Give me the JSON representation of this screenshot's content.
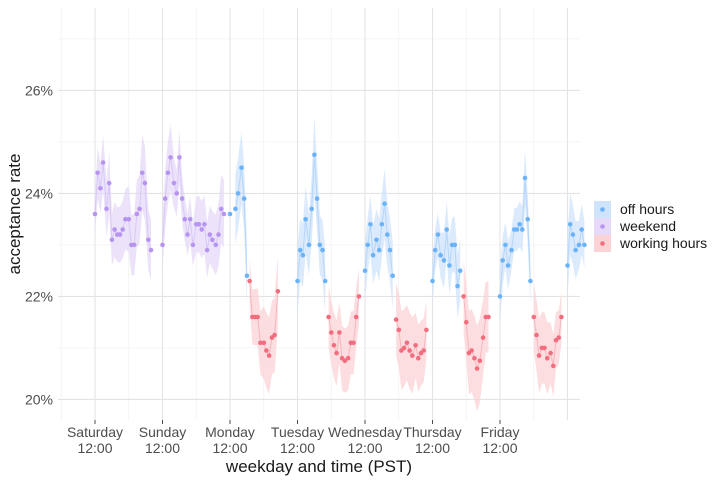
{
  "chart_data": {
    "type": "scatter",
    "xlabel": "weekday and time (PST)",
    "ylabel": "acceptance rate",
    "ylim": [
      19.6,
      27.6
    ],
    "y_ticks": [
      {
        "value": 20,
        "label": "20%"
      },
      {
        "value": 22,
        "label": "22%"
      },
      {
        "value": 24,
        "label": "24%"
      },
      {
        "value": 26,
        "label": "26%"
      }
    ],
    "x_ticks": [
      {
        "day": "Saturday",
        "time": "12:00"
      },
      {
        "day": "Sunday",
        "time": "12:00"
      },
      {
        "day": "Monday",
        "time": "12:00"
      },
      {
        "day": "Tuesday",
        "time": "12:00"
      },
      {
        "day": "Wednesday",
        "time": "12:00"
      },
      {
        "day": "Thursday",
        "time": "12:00"
      },
      {
        "day": "Friday",
        "time": "12:00"
      }
    ],
    "grid": true,
    "legend_placement": "right",
    "series": [
      {
        "name": "off hours",
        "color": "#6bb3f8",
        "band_color": "#cfe3fb",
        "points": [
          {
            "x": 2.0,
            "y": 23.6
          },
          {
            "x": 2.08,
            "y": 23.7
          },
          {
            "x": 2.12,
            "y": 24.0
          },
          {
            "x": 2.17,
            "y": 24.5
          },
          {
            "x": 2.21,
            "y": 23.9
          },
          {
            "x": 2.25,
            "y": 22.4
          },
          {
            "x": 3.0,
            "y": 22.3
          },
          {
            "x": 3.04,
            "y": 22.9
          },
          {
            "x": 3.08,
            "y": 22.8
          },
          {
            "x": 3.12,
            "y": 23.5
          },
          {
            "x": 3.17,
            "y": 23.0
          },
          {
            "x": 3.21,
            "y": 23.7
          },
          {
            "x": 3.25,
            "y": 24.75
          },
          {
            "x": 3.29,
            "y": 23.9
          },
          {
            "x": 3.33,
            "y": 23.0
          },
          {
            "x": 3.37,
            "y": 22.9
          },
          {
            "x": 3.41,
            "y": 22.3
          },
          {
            "x": 4.0,
            "y": 22.5
          },
          {
            "x": 4.04,
            "y": 23.0
          },
          {
            "x": 4.08,
            "y": 23.4
          },
          {
            "x": 4.12,
            "y": 22.8
          },
          {
            "x": 4.17,
            "y": 23.1
          },
          {
            "x": 4.21,
            "y": 22.9
          },
          {
            "x": 4.25,
            "y": 23.4
          },
          {
            "x": 4.29,
            "y": 23.8
          },
          {
            "x": 4.33,
            "y": 23.2
          },
          {
            "x": 4.37,
            "y": 22.9
          },
          {
            "x": 4.41,
            "y": 22.4
          },
          {
            "x": 5.0,
            "y": 22.3
          },
          {
            "x": 5.04,
            "y": 22.9
          },
          {
            "x": 5.08,
            "y": 23.2
          },
          {
            "x": 5.12,
            "y": 22.8
          },
          {
            "x": 5.17,
            "y": 22.7
          },
          {
            "x": 5.21,
            "y": 23.3
          },
          {
            "x": 5.25,
            "y": 22.6
          },
          {
            "x": 5.29,
            "y": 23.0
          },
          {
            "x": 5.33,
            "y": 23.0
          },
          {
            "x": 5.37,
            "y": 22.2
          },
          {
            "x": 5.41,
            "y": 22.5
          },
          {
            "x": 6.0,
            "y": 22.0
          },
          {
            "x": 6.04,
            "y": 22.7
          },
          {
            "x": 6.08,
            "y": 23.0
          },
          {
            "x": 6.12,
            "y": 22.6
          },
          {
            "x": 6.17,
            "y": 22.9
          },
          {
            "x": 6.21,
            "y": 23.3
          },
          {
            "x": 6.25,
            "y": 23.3
          },
          {
            "x": 6.29,
            "y": 23.4
          },
          {
            "x": 6.33,
            "y": 23.3
          },
          {
            "x": 6.37,
            "y": 24.3
          },
          {
            "x": 6.41,
            "y": 23.5
          },
          {
            "x": 6.45,
            "y": 22.3
          },
          {
            "x": 7.0,
            "y": 22.6
          },
          {
            "x": 7.04,
            "y": 23.4
          },
          {
            "x": 7.08,
            "y": 23.2
          },
          {
            "x": 7.12,
            "y": 22.9
          },
          {
            "x": 7.17,
            "y": 23.0
          },
          {
            "x": 7.21,
            "y": 23.3
          },
          {
            "x": 7.25,
            "y": 23.0
          }
        ]
      },
      {
        "name": "weekend",
        "color": "#b694f0",
        "band_color": "#e6daf8",
        "points": [
          {
            "x": 0.0,
            "y": 23.6
          },
          {
            "x": 0.04,
            "y": 24.4
          },
          {
            "x": 0.08,
            "y": 24.1
          },
          {
            "x": 0.12,
            "y": 24.6
          },
          {
            "x": 0.17,
            "y": 23.7
          },
          {
            "x": 0.21,
            "y": 24.2
          },
          {
            "x": 0.25,
            "y": 23.1
          },
          {
            "x": 0.29,
            "y": 23.3
          },
          {
            "x": 0.33,
            "y": 23.2
          },
          {
            "x": 0.37,
            "y": 23.2
          },
          {
            "x": 0.41,
            "y": 23.3
          },
          {
            "x": 0.45,
            "y": 23.5
          },
          {
            "x": 0.5,
            "y": 23.5
          },
          {
            "x": 0.54,
            "y": 23.0
          },
          {
            "x": 0.58,
            "y": 23.0
          },
          {
            "x": 0.62,
            "y": 23.6
          },
          {
            "x": 0.66,
            "y": 23.7
          },
          {
            "x": 0.7,
            "y": 24.4
          },
          {
            "x": 0.74,
            "y": 24.2
          },
          {
            "x": 0.79,
            "y": 23.1
          },
          {
            "x": 0.83,
            "y": 22.9
          },
          {
            "x": 1.0,
            "y": 23.0
          },
          {
            "x": 1.04,
            "y": 23.9
          },
          {
            "x": 1.08,
            "y": 24.4
          },
          {
            "x": 1.12,
            "y": 24.7
          },
          {
            "x": 1.17,
            "y": 24.2
          },
          {
            "x": 1.21,
            "y": 24.0
          },
          {
            "x": 1.25,
            "y": 24.7
          },
          {
            "x": 1.29,
            "y": 23.9
          },
          {
            "x": 1.33,
            "y": 23.5
          },
          {
            "x": 1.37,
            "y": 23.2
          },
          {
            "x": 1.41,
            "y": 23.5
          },
          {
            "x": 1.45,
            "y": 23.0
          },
          {
            "x": 1.5,
            "y": 23.4
          },
          {
            "x": 1.54,
            "y": 23.4
          },
          {
            "x": 1.58,
            "y": 23.3
          },
          {
            "x": 1.62,
            "y": 23.4
          },
          {
            "x": 1.66,
            "y": 22.9
          },
          {
            "x": 1.7,
            "y": 23.2
          },
          {
            "x": 1.74,
            "y": 23.1
          },
          {
            "x": 1.79,
            "y": 23.0
          },
          {
            "x": 1.83,
            "y": 23.2
          },
          {
            "x": 1.87,
            "y": 23.7
          },
          {
            "x": 1.91,
            "y": 23.6
          }
        ]
      },
      {
        "name": "working hours",
        "color": "#f26d7d",
        "band_color": "#fbd2d6",
        "points": [
          {
            "x": 2.29,
            "y": 22.3
          },
          {
            "x": 2.33,
            "y": 21.6
          },
          {
            "x": 2.37,
            "y": 21.6
          },
          {
            "x": 2.41,
            "y": 21.6
          },
          {
            "x": 2.45,
            "y": 21.1
          },
          {
            "x": 2.5,
            "y": 21.1
          },
          {
            "x": 2.54,
            "y": 20.95
          },
          {
            "x": 2.58,
            "y": 20.85
          },
          {
            "x": 2.62,
            "y": 21.2
          },
          {
            "x": 2.66,
            "y": 21.25
          },
          {
            "x": 2.71,
            "y": 22.1
          },
          {
            "x": 3.46,
            "y": 21.6
          },
          {
            "x": 3.5,
            "y": 21.3
          },
          {
            "x": 3.54,
            "y": 21.05
          },
          {
            "x": 3.58,
            "y": 20.9
          },
          {
            "x": 3.62,
            "y": 21.3
          },
          {
            "x": 3.66,
            "y": 20.8
          },
          {
            "x": 3.7,
            "y": 20.75
          },
          {
            "x": 3.75,
            "y": 20.8
          },
          {
            "x": 3.79,
            "y": 21.1
          },
          {
            "x": 3.83,
            "y": 21.1
          },
          {
            "x": 3.87,
            "y": 21.6
          },
          {
            "x": 3.91,
            "y": 22.0
          },
          {
            "x": 4.46,
            "y": 21.55
          },
          {
            "x": 4.5,
            "y": 21.35
          },
          {
            "x": 4.54,
            "y": 20.95
          },
          {
            "x": 4.58,
            "y": 21.0
          },
          {
            "x": 4.62,
            "y": 21.1
          },
          {
            "x": 4.66,
            "y": 20.95
          },
          {
            "x": 4.7,
            "y": 20.85
          },
          {
            "x": 4.75,
            "y": 21.05
          },
          {
            "x": 4.79,
            "y": 20.8
          },
          {
            "x": 4.83,
            "y": 20.9
          },
          {
            "x": 4.87,
            "y": 20.95
          },
          {
            "x": 4.91,
            "y": 21.35
          },
          {
            "x": 5.46,
            "y": 22.0
          },
          {
            "x": 5.5,
            "y": 21.5
          },
          {
            "x": 5.54,
            "y": 20.9
          },
          {
            "x": 5.58,
            "y": 20.95
          },
          {
            "x": 5.62,
            "y": 20.8
          },
          {
            "x": 5.66,
            "y": 20.6
          },
          {
            "x": 5.7,
            "y": 20.75
          },
          {
            "x": 5.75,
            "y": 21.2
          },
          {
            "x": 5.79,
            "y": 21.6
          },
          {
            "x": 5.83,
            "y": 21.6
          },
          {
            "x": 6.5,
            "y": 21.6
          },
          {
            "x": 6.54,
            "y": 21.25
          },
          {
            "x": 6.58,
            "y": 20.85
          },
          {
            "x": 6.62,
            "y": 21.0
          },
          {
            "x": 6.66,
            "y": 21.0
          },
          {
            "x": 6.7,
            "y": 20.8
          },
          {
            "x": 6.75,
            "y": 20.9
          },
          {
            "x": 6.79,
            "y": 20.65
          },
          {
            "x": 6.83,
            "y": 21.15
          },
          {
            "x": 6.87,
            "y": 21.2
          },
          {
            "x": 6.91,
            "y": 21.6
          }
        ]
      }
    ]
  }
}
